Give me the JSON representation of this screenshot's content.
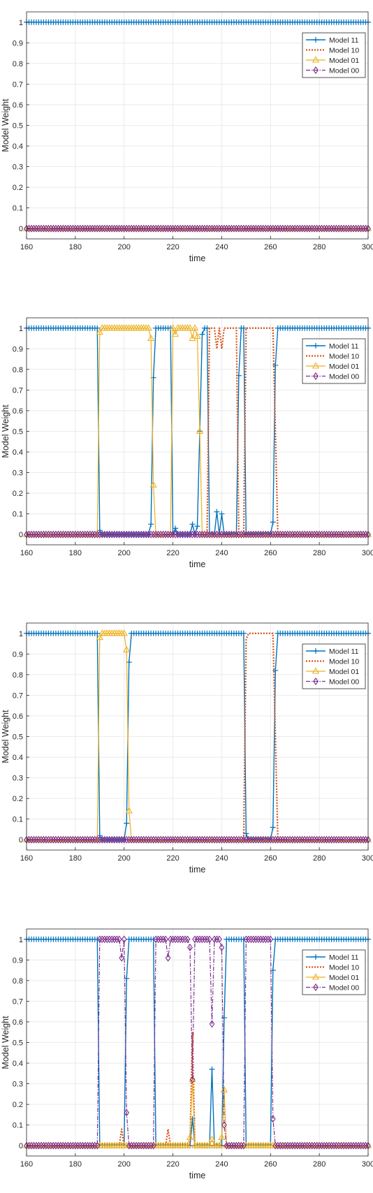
{
  "colors": {
    "m11": "#0072BD",
    "m10": "#D95319",
    "m01": "#EDB120",
    "m00": "#7E2F8E",
    "grid": "#e6e6e6",
    "axis": "#262626"
  },
  "chart_data": [
    {
      "type": "line",
      "xlabel": "time",
      "ylabel": "Model Weight",
      "xlim": [
        160,
        300
      ],
      "ylim": [
        -0.05,
        1.05
      ],
      "xticks": [
        "160",
        "180",
        "200",
        "220",
        "240",
        "260",
        "280",
        "300"
      ],
      "yticks": [
        "0",
        "0.1",
        "0.2",
        "0.3",
        "0.4",
        "0.5",
        "0.6",
        "0.7",
        "0.8",
        "0.9",
        "1"
      ],
      "grid": true,
      "legend": "right-upper",
      "series": [
        {
          "name": "Model 11",
          "style": "m11",
          "points": [
            [
              160,
              1
            ],
            [
              300,
              1
            ]
          ]
        },
        {
          "name": "Model 10",
          "style": "m10",
          "points": [
            [
              160,
              0
            ],
            [
              300,
              0
            ]
          ]
        },
        {
          "name": "Model 01",
          "style": "m01",
          "points": [
            [
              160,
              0
            ],
            [
              300,
              0
            ]
          ]
        },
        {
          "name": "Model 00",
          "style": "m00",
          "points": [
            [
              160,
              0
            ],
            [
              300,
              0
            ]
          ]
        }
      ]
    },
    {
      "type": "line",
      "xlabel": "time",
      "ylabel": "Model Weight",
      "xlim": [
        160,
        300
      ],
      "ylim": [
        -0.05,
        1.05
      ],
      "xticks": [
        "160",
        "180",
        "200",
        "220",
        "240",
        "260",
        "280",
        "300"
      ],
      "yticks": [
        "0",
        "0.1",
        "0.2",
        "0.3",
        "0.4",
        "0.5",
        "0.6",
        "0.7",
        "0.8",
        "0.9",
        "1"
      ],
      "grid": true,
      "legend": "right-upper",
      "series": [
        {
          "name": "Model 11",
          "style": "m11",
          "points": [
            [
              160,
              1
            ],
            [
              189,
              1
            ],
            [
              190,
              0.02
            ],
            [
              191,
              0
            ],
            [
              210,
              0
            ],
            [
              211,
              0.05
            ],
            [
              212,
              0.76
            ],
            [
              213,
              1
            ],
            [
              219,
              1
            ],
            [
              220,
              0
            ],
            [
              221,
              0.03
            ],
            [
              222,
              0
            ],
            [
              227,
              0
            ],
            [
              228,
              0.05
            ],
            [
              229,
              0
            ],
            [
              230,
              0.04
            ],
            [
              231,
              0.5
            ],
            [
              232,
              0.97
            ],
            [
              233,
              1
            ],
            [
              234,
              1
            ],
            [
              235,
              0
            ],
            [
              237,
              0
            ],
            [
              238,
              0.11
            ],
            [
              239,
              0
            ],
            [
              240,
              0.1
            ],
            [
              241,
              0
            ],
            [
              246,
              0
            ],
            [
              247,
              0.77
            ],
            [
              248,
              1
            ],
            [
              249,
              1
            ],
            [
              250,
              0
            ],
            [
              260,
              0
            ],
            [
              261,
              0.06
            ],
            [
              262,
              0.82
            ],
            [
              263,
              1
            ],
            [
              300,
              1
            ]
          ]
        },
        {
          "name": "Model 10",
          "style": "m10",
          "points": [
            [
              160,
              0
            ],
            [
              234,
              0
            ],
            [
              235,
              1
            ],
            [
              237,
              1
            ],
            [
              238,
              0.9
            ],
            [
              239,
              1
            ],
            [
              240,
              0.9
            ],
            [
              241,
              1
            ],
            [
              246,
              1
            ],
            [
              247,
              0
            ],
            [
              248,
              0
            ],
            [
              249,
              0
            ],
            [
              250,
              1
            ],
            [
              261,
              1
            ],
            [
              262,
              0.5
            ],
            [
              263,
              0
            ],
            [
              300,
              0
            ]
          ]
        },
        {
          "name": "Model 01",
          "style": "m01",
          "points": [
            [
              160,
              0
            ],
            [
              189,
              0
            ],
            [
              190,
              0.98
            ],
            [
              191,
              1
            ],
            [
              210,
              1
            ],
            [
              211,
              0.95
            ],
            [
              212,
              0.24
            ],
            [
              213,
              0
            ],
            [
              219,
              0
            ],
            [
              220,
              1
            ],
            [
              221,
              0.97
            ],
            [
              222,
              1
            ],
            [
              227,
              1
            ],
            [
              228,
              0.95
            ],
            [
              229,
              1
            ],
            [
              230,
              0.96
            ],
            [
              231,
              0.5
            ],
            [
              232,
              0
            ],
            [
              300,
              0
            ]
          ]
        },
        {
          "name": "Model 00",
          "style": "m00",
          "points": [
            [
              160,
              0
            ],
            [
              300,
              0
            ]
          ]
        }
      ]
    },
    {
      "type": "line",
      "xlabel": "time",
      "ylabel": "Model Weight",
      "xlim": [
        160,
        300
      ],
      "ylim": [
        -0.05,
        1.05
      ],
      "xticks": [
        "160",
        "180",
        "200",
        "220",
        "240",
        "260",
        "280",
        "300"
      ],
      "yticks": [
        "0",
        "0.1",
        "0.2",
        "0.3",
        "0.4",
        "0.5",
        "0.6",
        "0.7",
        "0.8",
        "0.9",
        "1"
      ],
      "grid": true,
      "legend": "right-upper",
      "series": [
        {
          "name": "Model 11",
          "style": "m11",
          "points": [
            [
              160,
              1
            ],
            [
              189,
              1
            ],
            [
              190,
              0.02
            ],
            [
              191,
              0
            ],
            [
              200,
              0
            ],
            [
              201,
              0.08
            ],
            [
              202,
              0.86
            ],
            [
              203,
              1
            ],
            [
              249,
              1
            ],
            [
              250,
              0.03
            ],
            [
              251,
              0
            ],
            [
              260,
              0
            ],
            [
              261,
              0.06
            ],
            [
              262,
              0.82
            ],
            [
              263,
              1
            ],
            [
              300,
              1
            ]
          ]
        },
        {
          "name": "Model 10",
          "style": "m10",
          "points": [
            [
              160,
              0
            ],
            [
              249,
              0
            ],
            [
              250,
              0.97
            ],
            [
              251,
              1
            ],
            [
              261,
              1
            ],
            [
              262,
              0.5
            ],
            [
              263,
              0
            ],
            [
              300,
              0
            ]
          ]
        },
        {
          "name": "Model 01",
          "style": "m01",
          "points": [
            [
              160,
              0
            ],
            [
              189,
              0
            ],
            [
              190,
              0.98
            ],
            [
              191,
              1
            ],
            [
              200,
              1
            ],
            [
              201,
              0.92
            ],
            [
              202,
              0.14
            ],
            [
              203,
              0
            ],
            [
              300,
              0
            ]
          ]
        },
        {
          "name": "Model 00",
          "style": "m00",
          "points": [
            [
              160,
              0
            ],
            [
              300,
              0
            ]
          ]
        }
      ]
    },
    {
      "type": "line",
      "xlabel": "time",
      "ylabel": "Model Weight",
      "xlim": [
        160,
        300
      ],
      "ylim": [
        -0.05,
        1.05
      ],
      "xticks": [
        "160",
        "180",
        "200",
        "220",
        "240",
        "260",
        "280",
        "300"
      ],
      "yticks": [
        "0",
        "0.1",
        "0.2",
        "0.3",
        "0.4",
        "0.5",
        "0.6",
        "0.7",
        "0.8",
        "0.9",
        "1"
      ],
      "grid": true,
      "legend": "right-upper",
      "series": [
        {
          "name": "Model 11",
          "style": "m11",
          "points": [
            [
              160,
              1
            ],
            [
              189,
              1
            ],
            [
              190,
              0
            ],
            [
              200,
              0
            ],
            [
              201,
              0.81
            ],
            [
              202,
              1
            ],
            [
              212,
              1
            ],
            [
              213,
              0
            ],
            [
              227,
              0
            ],
            [
              228,
              0.13
            ],
            [
              229,
              0
            ],
            [
              235,
              0
            ],
            [
              236,
              0.37
            ],
            [
              237,
              0
            ],
            [
              240,
              0
            ],
            [
              241,
              0.62
            ],
            [
              242,
              1
            ],
            [
              249,
              1
            ],
            [
              250,
              0
            ],
            [
              260,
              0
            ],
            [
              261,
              0.85
            ],
            [
              262,
              1
            ],
            [
              300,
              1
            ]
          ]
        },
        {
          "name": "Model 10",
          "style": "m10",
          "points": [
            [
              160,
              0
            ],
            [
              198,
              0
            ],
            [
              199,
              0.08
            ],
            [
              200,
              0
            ],
            [
              217,
              0
            ],
            [
              218,
              0.08
            ],
            [
              219,
              0
            ],
            [
              227,
              0
            ],
            [
              228,
              0.55
            ],
            [
              229,
              0
            ],
            [
              300,
              0
            ]
          ]
        },
        {
          "name": "Model 01",
          "style": "m01",
          "points": [
            [
              160,
              0
            ],
            [
              226,
              0
            ],
            [
              227,
              0.04
            ],
            [
              228,
              0.32
            ],
            [
              229,
              0
            ],
            [
              235,
              0
            ],
            [
              236,
              0.03
            ],
            [
              237,
              0
            ],
            [
              239,
              0
            ],
            [
              240,
              0.04
            ],
            [
              241,
              0.27
            ],
            [
              242,
              0
            ],
            [
              300,
              0
            ]
          ]
        },
        {
          "name": "Model 00",
          "style": "m00",
          "points": [
            [
              160,
              0
            ],
            [
              189,
              0
            ],
            [
              190,
              1
            ],
            [
              198,
              1
            ],
            [
              199,
              0.91
            ],
            [
              200,
              1
            ],
            [
              201,
              0.16
            ],
            [
              202,
              0
            ],
            [
              212,
              0
            ],
            [
              213,
              1
            ],
            [
              217,
              1
            ],
            [
              218,
              0.91
            ],
            [
              219,
              1
            ],
            [
              226,
              1
            ],
            [
              227,
              0.96
            ],
            [
              228,
              0.32
            ],
            [
              229,
              1
            ],
            [
              235,
              1
            ],
            [
              236,
              0.59
            ],
            [
              237,
              1
            ],
            [
              239,
              1
            ],
            [
              240,
              0.96
            ],
            [
              241,
              0.1
            ],
            [
              242,
              0
            ],
            [
              249,
              0
            ],
            [
              250,
              1
            ],
            [
              260,
              1
            ],
            [
              261,
              0.13
            ],
            [
              262,
              0
            ],
            [
              300,
              0
            ]
          ]
        }
      ]
    }
  ]
}
